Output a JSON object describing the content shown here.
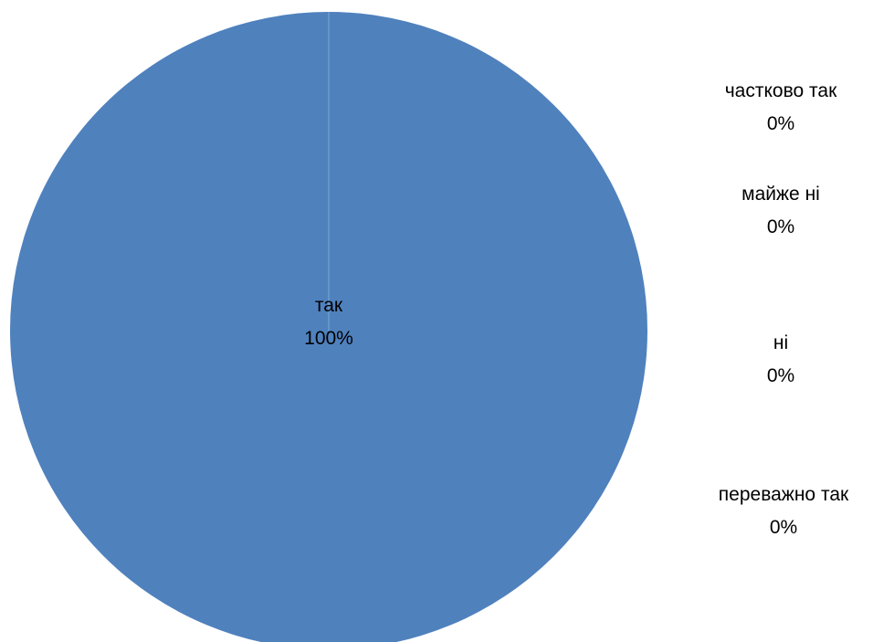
{
  "chart_data": {
    "type": "pie",
    "title": "",
    "slices": [
      {
        "label": "так",
        "value": 100,
        "value_label": "100%"
      },
      {
        "label": "переважно так",
        "value": 0,
        "value_label": "0%"
      },
      {
        "label": "ні",
        "value": 0,
        "value_label": "0%"
      },
      {
        "label": "майже ні",
        "value": 0,
        "value_label": "0%"
      },
      {
        "label": "частково так",
        "value": 0,
        "value_label": "0%"
      }
    ],
    "colors": [
      "#4f81bd",
      "#c0504d",
      "#9bbb59",
      "#8064a2",
      "#4bacc6"
    ],
    "legend": "none",
    "data_labels": "category-and-percent"
  }
}
